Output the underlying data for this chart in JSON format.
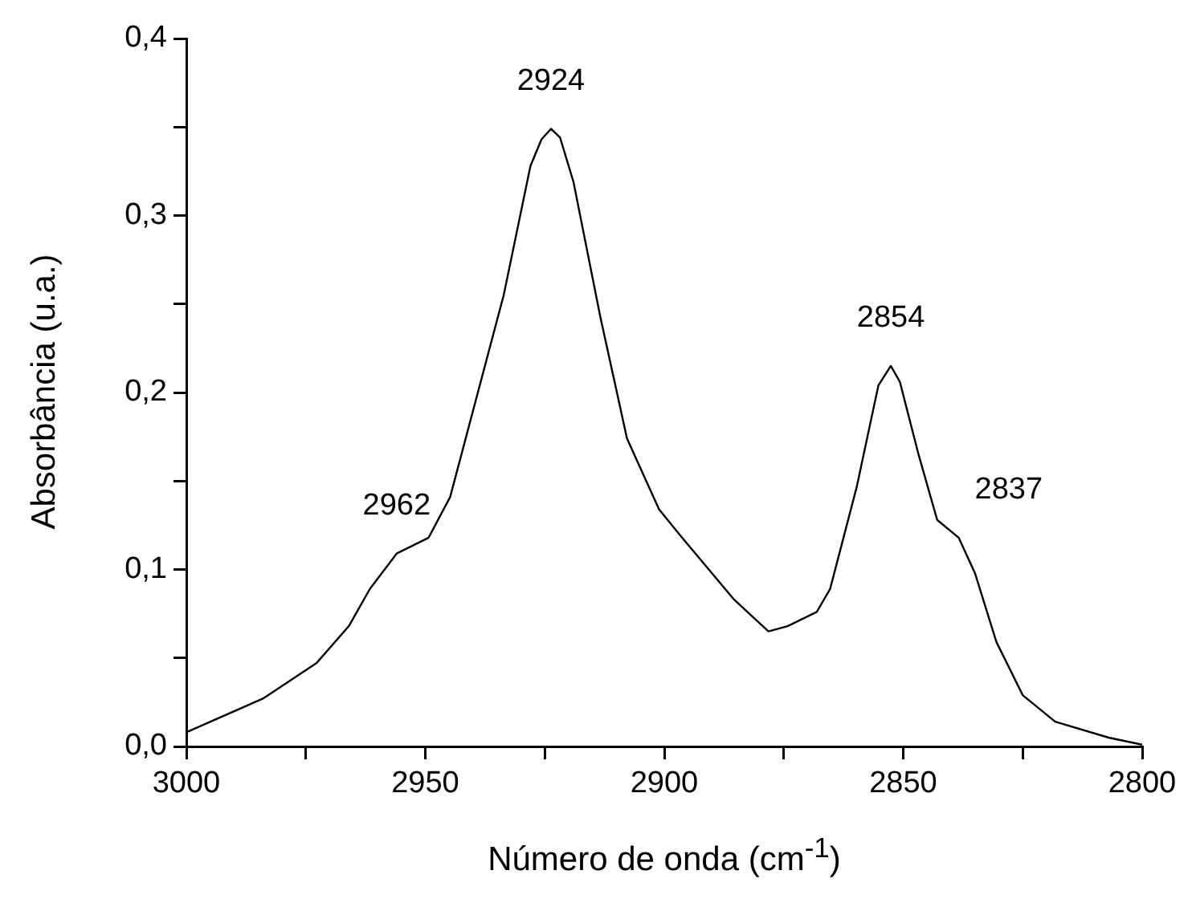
{
  "chart_data": {
    "type": "line",
    "xlabel": "Número de onda (cm$^{-1}$)",
    "ylabel": "Absorbância (u.a.)",
    "x": [
      3000,
      2984,
      2972.8,
      2966,
      2961.6,
      2956,
      2949.3,
      2944.8,
      2939.2,
      2933.6,
      2928,
      2925.7,
      2923.7,
      2921.8,
      2919,
      2913.4,
      2907.8,
      2901.1,
      2896.6,
      2885.4,
      2878.2,
      2874.2,
      2868.1,
      2865.3,
      2859.7,
      2855.2,
      2852.6,
      2850.7,
      2846.8,
      2842.9,
      2838.4,
      2835,
      2830.5,
      2825,
      2818.2,
      2807,
      2800
    ],
    "series": [
      {
        "color": "#000000",
        "values": [
          0.008,
          0.027,
          0.047,
          0.068,
          0.089,
          0.109,
          0.118,
          0.141,
          0.198,
          0.255,
          0.328,
          0.343,
          0.349,
          0.344,
          0.319,
          0.243,
          0.174,
          0.134,
          0.119,
          0.083,
          0.065,
          0.068,
          0.076,
          0.089,
          0.147,
          0.204,
          0.215,
          0.206,
          0.165,
          0.128,
          0.118,
          0.098,
          0.059,
          0.029,
          0.014,
          0.005,
          0.001
        ]
      }
    ],
    "xlim": [
      3000,
      2800
    ],
    "xticks": [
      3000,
      {
        "value": 2975,
        "label": null
      },
      2950,
      {
        "value": 2925,
        "label": null
      },
      2900,
      {
        "value": 2875,
        "label": null
      },
      2850,
      {
        "value": 2825,
        "label": null
      },
      2800
    ],
    "ylim": [
      0,
      0.4
    ],
    "yticks": [
      {
        "value": 0,
        "label": "0,0"
      },
      {
        "value": 0.05,
        "label": null
      },
      {
        "value": 0.1,
        "label": "0,1"
      },
      {
        "value": 0.15,
        "label": null
      },
      {
        "value": 0.2,
        "label": "0,2"
      },
      {
        "value": 0.25,
        "label": null
      },
      {
        "value": 0.3,
        "label": "0,3"
      },
      {
        "value": 0.35,
        "label": null
      },
      {
        "value": 0.4,
        "label": "0,4"
      }
    ],
    "annotations": [
      {
        "text": "2962",
        "x": 2956,
        "y": 0.109
      },
      {
        "text": "2924",
        "x": 2923.7,
        "y": 0.349
      },
      {
        "text": "2854",
        "x": 2852.6,
        "y": 0.215
      },
      {
        "text": "2837",
        "x": 2838.4,
        "y": 0.118
      }
    ],
    "grid": false,
    "legend": false,
    "marker": "none",
    "line_style": "solid"
  }
}
